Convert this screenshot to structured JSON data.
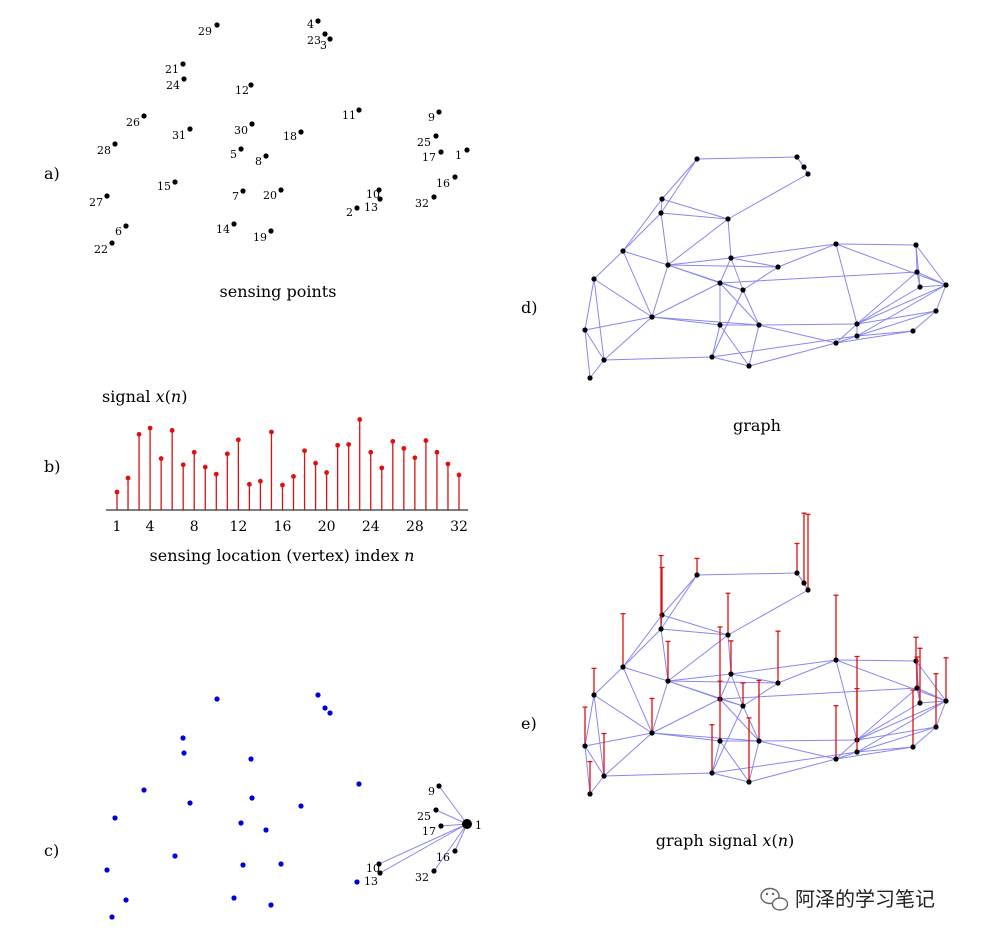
{
  "panel_labels": [
    "a)",
    "b)",
    "c)",
    "d)",
    "e)"
  ],
  "captions": {
    "a": "sensing points",
    "b_title": "signal x(n)",
    "b_xlabel": "sensing location (vertex) index n",
    "d": "graph",
    "e": "graph signal x(n)"
  },
  "watermark": "阿泽的学习笔记",
  "colors": {
    "point": "#000000",
    "stem": "#dd1111",
    "blue_point": "#0000dd",
    "edge": "#8888ee"
  },
  "vertex_labels": [
    "1",
    "2",
    "3",
    "4",
    "5",
    "6",
    "7",
    "8",
    "9",
    "10",
    "11",
    "12",
    "13",
    "14",
    "15",
    "16",
    "17",
    "18",
    "19",
    "20",
    "21",
    "22",
    "23",
    "24",
    "25",
    "26",
    "27",
    "28",
    "29",
    "30",
    "31",
    "32"
  ],
  "signal": {
    "xticks": [
      "1",
      "4",
      "8",
      "12",
      "16",
      "20",
      "24",
      "28",
      "32"
    ],
    "values": [
      0.23,
      0.41,
      0.97,
      1.05,
      0.66,
      1.02,
      0.58,
      0.74,
      0.55,
      0.46,
      0.72,
      0.9,
      0.33,
      0.37,
      1.0,
      0.32,
      0.43,
      0.76,
      0.6,
      0.48,
      0.83,
      0.84,
      1.16,
      0.74,
      0.54,
      0.88,
      0.79,
      0.67,
      0.89,
      0.74,
      0.59,
      0.45
    ]
  },
  "neighborhood": {
    "center_label": "1",
    "neighbor_labels": [
      "9",
      "25",
      "17",
      "16",
      "32",
      "10",
      "13"
    ]
  }
}
